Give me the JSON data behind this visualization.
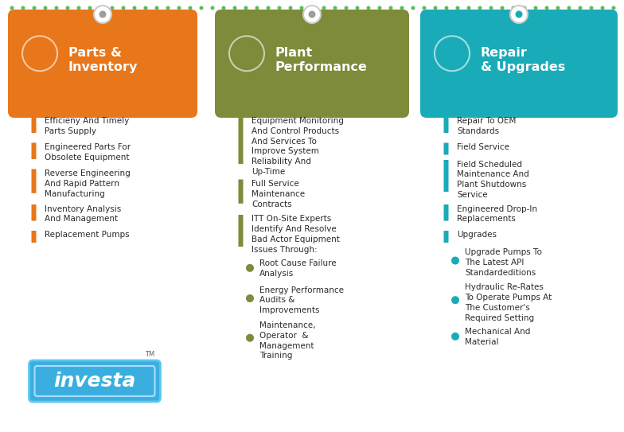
{
  "background_color": "#ffffff",
  "dashed_line_color": "#5BBD5A",
  "columns": [
    {
      "header_bg": "#E8761A",
      "header_title": "Parts &\nInventory",
      "header_text_color": "#ffffff",
      "accent_color": "#E8761A",
      "circle_color": "#9E9E9E",
      "items": [
        {
          "type": "bar",
          "text": "Efficieny And Timely\nParts Supply"
        },
        {
          "type": "bar",
          "text": "Engineered Parts For\nObsolete Equipment"
        },
        {
          "type": "bar",
          "text": "Reverse Engineering\nAnd Rapid Pattern\nManufacturing"
        },
        {
          "type": "bar",
          "text": "Inventory Analysis\nAnd Management"
        },
        {
          "type": "bar",
          "text": "Replacement Pumps"
        }
      ],
      "has_logo": true,
      "logo_text": "investa",
      "logo_bg": "#3BAEE0",
      "logo_border": "#5BC8F0"
    },
    {
      "header_bg": "#7D8B3A",
      "header_title": "Plant\nPerformance",
      "header_text_color": "#ffffff",
      "accent_color": "#7D8B3A",
      "circle_color": "#9E9E9E",
      "items": [
        {
          "type": "bar",
          "text": "Equipment Monitoring\nAnd Control Products\nAnd Services To\nImprove System\nReliability And\nUp-Time"
        },
        {
          "type": "bar",
          "text": "Full Service\nMaintenance\nContracts"
        },
        {
          "type": "bar",
          "text": "ITT On-Site Experts\nIdentify And Resolve\nBad Actor Equipment\nIssues Through:"
        },
        {
          "type": "dot",
          "text": "Root Cause Failure\nAnalysis"
        },
        {
          "type": "dot",
          "text": "Energy Performance\nAudits &\nImprovements"
        },
        {
          "type": "dot",
          "text": "Maintenance,\nOperator  &\nManagement\nTraining"
        }
      ],
      "has_logo": false
    },
    {
      "header_bg": "#1AABB8",
      "header_title": "Repair\n& Upgrades",
      "header_text_color": "#ffffff",
      "accent_color": "#1AABB8",
      "circle_color": "#1AABB8",
      "items": [
        {
          "type": "bar",
          "text": "Repair To OEM\nStandards"
        },
        {
          "type": "bar",
          "text": "Field Service"
        },
        {
          "type": "bar",
          "text": "Field Scheduled\nMaintenance And\nPlant Shutdowns\nService"
        },
        {
          "type": "bar",
          "text": "Engineered Drop-In\nReplacements"
        },
        {
          "type": "bar",
          "text": "Upgrades"
        },
        {
          "type": "dot",
          "text": "Upgrade Pumps To\nThe Latest API\nStandardeditions"
        },
        {
          "type": "dot",
          "text": "Hydraulic Re-Rates\nTo Operate Pumps At\nThe Customer's\nRequired Setting"
        },
        {
          "type": "dot",
          "text": "Mechanical And\nMaterial"
        }
      ],
      "has_logo": false
    }
  ]
}
